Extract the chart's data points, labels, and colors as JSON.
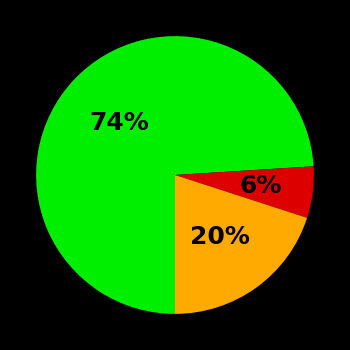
{
  "slices": [
    74,
    6,
    20
  ],
  "colors": [
    "#00ee00",
    "#dd0000",
    "#ffaa00"
  ],
  "labels": [
    "74%",
    "6%",
    "20%"
  ],
  "background_color": "#000000",
  "label_fontsize": 18,
  "label_fontweight": "bold",
  "startangle": 270,
  "label_radii": [
    0.55,
    0.62,
    0.55
  ]
}
